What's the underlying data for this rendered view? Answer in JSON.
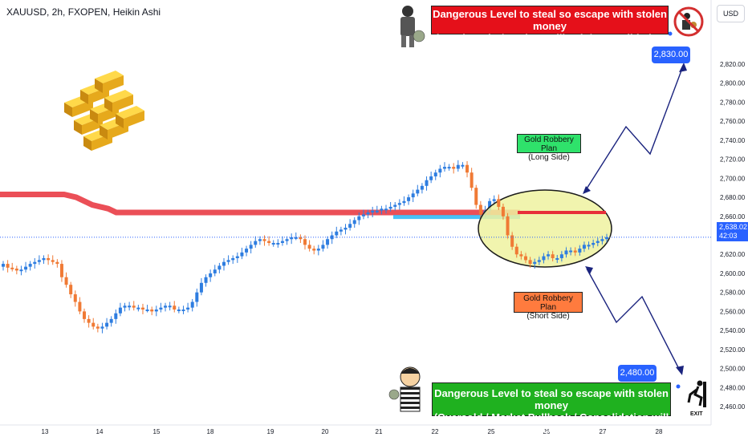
{
  "header": {
    "symbol_line": "XAUUSD, 2h, FXOPEN, Heikin Ashi"
  },
  "currency_button": "USD",
  "last_price": {
    "value": "2,638.02",
    "countdown": "42:03"
  },
  "annotations": {
    "top_box": {
      "line1": "Dangerous Level to steal so escape with stolen money",
      "line2": "(Overbought / Market Pullback / Consolidation will Occur)"
    },
    "bottom_box": {
      "line1": "Dangerous Level to steal so escape with stolen money",
      "line2": "(Oversold / Market Pullback / Consolidation will Occur)"
    },
    "long_plan": {
      "line1": "Gold Robbery Plan",
      "line2": "(Long Side)"
    },
    "short_plan": {
      "line1": "Gold Robbery Plan",
      "line2": "(Short Side)"
    },
    "target_high": "2,830.00",
    "target_low": "2,480.00",
    "exit_label": "EXIT"
  },
  "colors": {
    "up": "#2e7de0",
    "down": "#f07a35",
    "resistance": "#e8303a",
    "support": "#29b6f6",
    "ellipse": "#eef2a0",
    "label_blue": "#2962ff"
  },
  "chart_data": {
    "type": "candlestick",
    "title": "XAUUSD, 2h, FXOPEN, Heikin Ashi",
    "x_ticks": [
      "13",
      "14",
      "15",
      "18",
      "19",
      "20",
      "21",
      "22",
      "25",
      "26",
      "27",
      "28"
    ],
    "y_ticks": [
      "2,820.00",
      "2,800.00",
      "2,780.00",
      "2,760.00",
      "2,740.00",
      "2,720.00",
      "2,700.00",
      "2,680.00",
      "2,660.00",
      "2,620.00",
      "2,600.00",
      "2,580.00",
      "2,560.00",
      "2,540.00",
      "2,520.00",
      "2,500.00",
      "2,480.00",
      "2,460.00"
    ],
    "ylim": [
      2450,
      2840
    ],
    "close_path": [
      2610,
      2606,
      2605,
      2603,
      2604,
      2607,
      2610,
      2612,
      2614,
      2616,
      2614,
      2612,
      2610,
      2596,
      2588,
      2578,
      2570,
      2560,
      2552,
      2548,
      2544,
      2542,
      2544,
      2548,
      2552,
      2558,
      2564,
      2566,
      2566,
      2564,
      2564,
      2562,
      2562,
      2560,
      2562,
      2564,
      2566,
      2566,
      2562,
      2562,
      2562,
      2564,
      2570,
      2580,
      2590,
      2596,
      2600,
      2604,
      2608,
      2612,
      2614,
      2616,
      2618,
      2622,
      2626,
      2630,
      2634,
      2636,
      2634,
      2632,
      2632,
      2632,
      2634,
      2636,
      2638,
      2638,
      2636,
      2630,
      2626,
      2624,
      2626,
      2630,
      2636,
      2640,
      2644,
      2646,
      2648,
      2652,
      2656,
      2660,
      2662,
      2664,
      2666,
      2666,
      2668,
      2668,
      2670,
      2672,
      2674,
      2676,
      2680,
      2684,
      2688,
      2692,
      2698,
      2702,
      2706,
      2710,
      2712,
      2712,
      2710,
      2714,
      2714,
      2706,
      2690,
      2672,
      2662,
      2666,
      2676,
      2678,
      2670,
      2660,
      2640,
      2628,
      2620,
      2618,
      2614,
      2610,
      2612,
      2614,
      2618,
      2620,
      2616,
      2616,
      2620,
      2624,
      2624,
      2622,
      2626,
      2630,
      2630,
      2632,
      2634,
      2636,
      2638
    ],
    "resistance_level": 2663,
    "support_zone": 2663,
    "ellipse_center": {
      "x_index": 126,
      "y": 2635
    },
    "targets": {
      "upper": 2830,
      "lower": 2480
    },
    "projection_up": [
      [
        2667
      ],
      [
        2710
      ],
      [
        2750
      ],
      [
        2718
      ],
      [
        2790
      ]
    ],
    "projection_down": [
      [
        2602
      ],
      [
        2570
      ],
      [
        2530
      ],
      [
        2556
      ],
      [
        2485
      ]
    ]
  }
}
